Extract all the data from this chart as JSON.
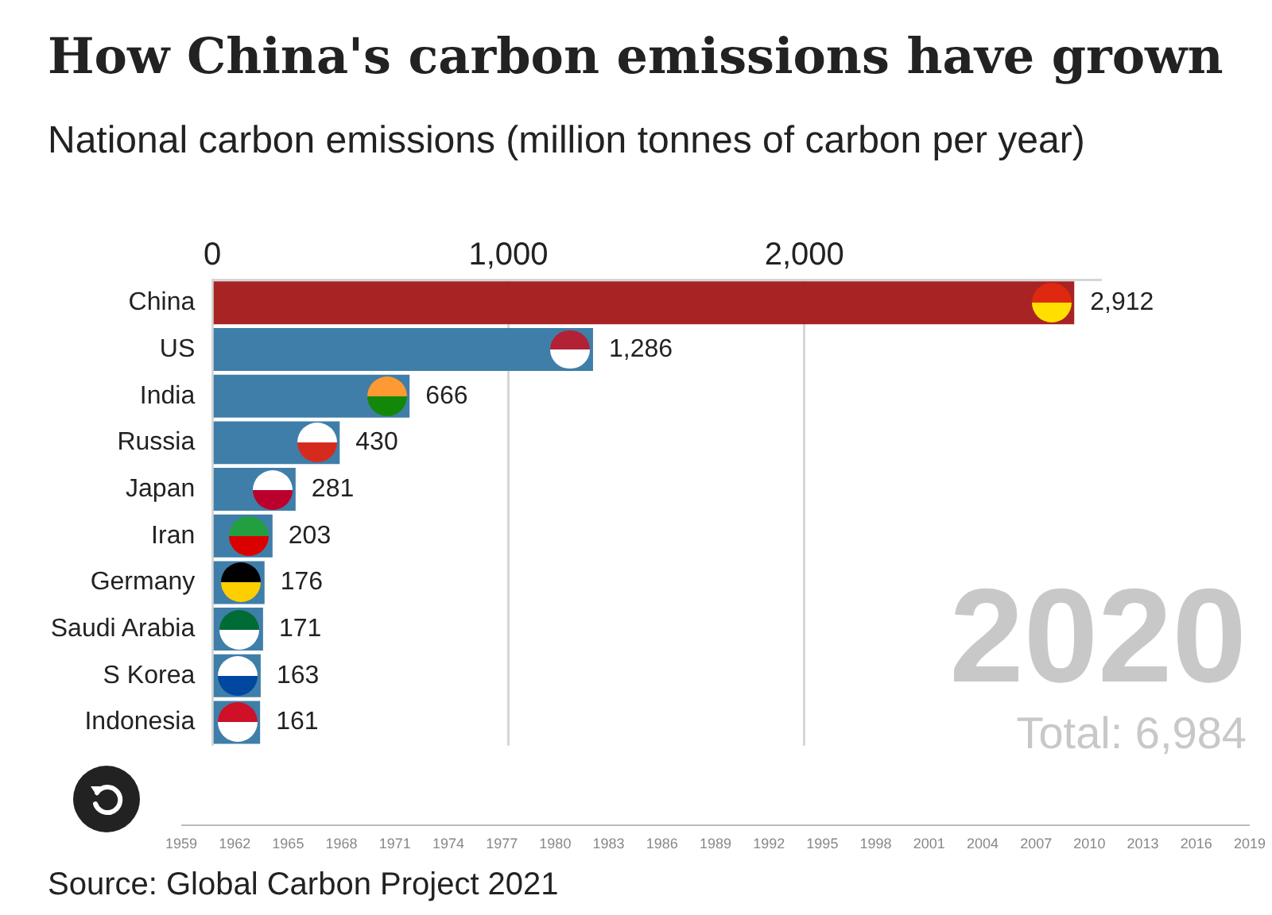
{
  "chart_data": {
    "type": "bar",
    "orientation": "horizontal",
    "title": "How China's carbon emissions have grown",
    "subtitle": "National carbon emissions (million tonnes of carbon per year)",
    "categories": [
      "China",
      "US",
      "India",
      "Russia",
      "Japan",
      "Iran",
      "Germany",
      "Saudi Arabia",
      "S Korea",
      "Indonesia"
    ],
    "values": [
      2912,
      1286,
      666,
      430,
      281,
      203,
      176,
      171,
      163,
      161
    ],
    "colors": [
      "#a82324",
      "#3f7ea9",
      "#3f7ea9",
      "#3f7ea9",
      "#3f7ea9",
      "#3f7ea9",
      "#3f7ea9",
      "#3f7ea9",
      "#3f7ea9",
      "#3f7ea9"
    ],
    "value_labels": [
      "2,912",
      "1,286",
      "666",
      "430",
      "281",
      "203",
      "176",
      "171",
      "163",
      "161"
    ],
    "xlim": [
      0,
      3000
    ],
    "xticks": [
      0,
      {
        "value": 1000,
        "label": "1,000"
      },
      {
        "value": 2000,
        "label": "2,000"
      }
    ],
    "grid": "x",
    "legend": false,
    "annotations": [
      "2020",
      "Total: 6,984",
      "Source: Global Carbon Project 2021",
      "1959",
      "1962",
      "1965",
      "1968",
      "1971",
      "1974",
      "1977",
      "1980",
      "1983",
      "1986",
      "1989",
      "1992",
      "1995",
      "1998",
      "2001",
      "2004",
      "2007",
      "2010",
      "2013",
      "2016",
      "2019"
    ]
  }
}
